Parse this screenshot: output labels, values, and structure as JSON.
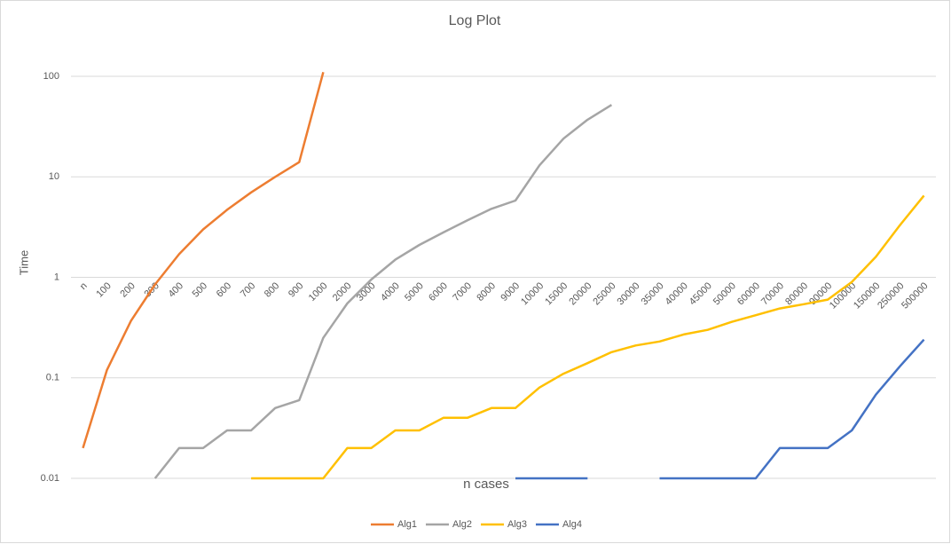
{
  "chart_data": {
    "type": "line",
    "title": "Log Plot",
    "x_label": "n cases",
    "y_label": "Time",
    "log_y": true,
    "grid": true,
    "legend": "bottom",
    "categories": [
      "n",
      "100",
      "200",
      "300",
      "400",
      "500",
      "600",
      "700",
      "800",
      "900",
      "1000",
      "2000",
      "3000",
      "4000",
      "5000",
      "6000",
      "7000",
      "8000",
      "9000",
      "10000",
      "15000",
      "20000",
      "25000",
      "30000",
      "35000",
      "40000",
      "45000",
      "50000",
      "60000",
      "70000",
      "80000",
      "90000",
      "100000",
      "150000",
      "250000",
      "500000"
    ],
    "series": [
      {
        "name": "Alg1",
        "color": "#ed7d31",
        "values": [
          0.02,
          0.12,
          0.37,
          0.85,
          1.7,
          3,
          4.7,
          7,
          10,
          14,
          110,
          null,
          null,
          null,
          null,
          null,
          null,
          null,
          null,
          null,
          null,
          null,
          null,
          null,
          null,
          null,
          null,
          null,
          null,
          null,
          null,
          null,
          null,
          null,
          null,
          null
        ]
      },
      {
        "name": "Alg2",
        "color": "#a5a5a5",
        "values": [
          null,
          null,
          null,
          0.01,
          0.02,
          0.02,
          0.03,
          0.03,
          0.05,
          0.06,
          0.25,
          0.55,
          0.95,
          1.5,
          2.1,
          2.8,
          3.7,
          4.8,
          5.8,
          13,
          24,
          37,
          52,
          null,
          null,
          null,
          null,
          null,
          null,
          null,
          null,
          null,
          null,
          null,
          null,
          null
        ]
      },
      {
        "name": "Alg3",
        "color": "#ffc000",
        "values": [
          null,
          null,
          null,
          null,
          null,
          null,
          null,
          0.01,
          0.01,
          0.01,
          0.01,
          0.02,
          0.02,
          0.03,
          0.03,
          0.04,
          0.04,
          0.05,
          0.05,
          0.08,
          0.11,
          0.14,
          0.18,
          0.21,
          0.23,
          0.27,
          0.3,
          0.36,
          0.42,
          0.49,
          0.54,
          0.6,
          0.9,
          1.6,
          3.3,
          6.5
        ]
      },
      {
        "name": "Alg4",
        "color": "#4472c4",
        "values": [
          null,
          null,
          null,
          null,
          null,
          null,
          null,
          null,
          null,
          null,
          null,
          null,
          null,
          null,
          null,
          null,
          null,
          null,
          0.01,
          0.01,
          0.01,
          0.01,
          null,
          null,
          0.01,
          0.01,
          0.01,
          0.01,
          0.01,
          0.02,
          0.02,
          0.02,
          0.03,
          0.068,
          0.13,
          0.24
        ]
      }
    ],
    "ylim": [
      0.01,
      100
    ],
    "yticks": [
      0.01,
      0.1,
      1,
      10,
      100
    ]
  }
}
